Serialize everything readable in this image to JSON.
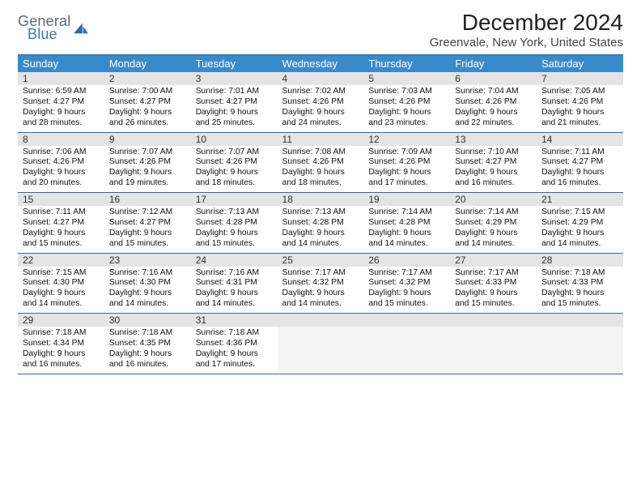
{
  "brand": {
    "word1": "General",
    "word2": "Blue",
    "color1": "#5b6a78",
    "color2": "#3a78b5",
    "shape_color": "#2f6aa8"
  },
  "title": "December 2024",
  "location": "Greenvale, New York, United States",
  "colors": {
    "header_bg": "#3a8ac9",
    "rule": "#2f6aa8",
    "daystrip": "#e4e4e4",
    "empty_detail": "#f4f4f4"
  },
  "weekdays": [
    "Sunday",
    "Monday",
    "Tuesday",
    "Wednesday",
    "Thursday",
    "Friday",
    "Saturday"
  ],
  "weeks": [
    {
      "nums": [
        "1",
        "2",
        "3",
        "4",
        "5",
        "6",
        "7"
      ],
      "days": [
        {
          "sunrise": "6:59 AM",
          "sunset": "4:27 PM",
          "dayh": "9",
          "daym": "28"
        },
        {
          "sunrise": "7:00 AM",
          "sunset": "4:27 PM",
          "dayh": "9",
          "daym": "26"
        },
        {
          "sunrise": "7:01 AM",
          "sunset": "4:27 PM",
          "dayh": "9",
          "daym": "25"
        },
        {
          "sunrise": "7:02 AM",
          "sunset": "4:26 PM",
          "dayh": "9",
          "daym": "24"
        },
        {
          "sunrise": "7:03 AM",
          "sunset": "4:26 PM",
          "dayh": "9",
          "daym": "23"
        },
        {
          "sunrise": "7:04 AM",
          "sunset": "4:26 PM",
          "dayh": "9",
          "daym": "22"
        },
        {
          "sunrise": "7:05 AM",
          "sunset": "4:26 PM",
          "dayh": "9",
          "daym": "21"
        }
      ]
    },
    {
      "nums": [
        "8",
        "9",
        "10",
        "11",
        "12",
        "13",
        "14"
      ],
      "days": [
        {
          "sunrise": "7:06 AM",
          "sunset": "4:26 PM",
          "dayh": "9",
          "daym": "20"
        },
        {
          "sunrise": "7:07 AM",
          "sunset": "4:26 PM",
          "dayh": "9",
          "daym": "19"
        },
        {
          "sunrise": "7:07 AM",
          "sunset": "4:26 PM",
          "dayh": "9",
          "daym": "18"
        },
        {
          "sunrise": "7:08 AM",
          "sunset": "4:26 PM",
          "dayh": "9",
          "daym": "18"
        },
        {
          "sunrise": "7:09 AM",
          "sunset": "4:26 PM",
          "dayh": "9",
          "daym": "17"
        },
        {
          "sunrise": "7:10 AM",
          "sunset": "4:27 PM",
          "dayh": "9",
          "daym": "16"
        },
        {
          "sunrise": "7:11 AM",
          "sunset": "4:27 PM",
          "dayh": "9",
          "daym": "16"
        }
      ]
    },
    {
      "nums": [
        "15",
        "16",
        "17",
        "18",
        "19",
        "20",
        "21"
      ],
      "days": [
        {
          "sunrise": "7:11 AM",
          "sunset": "4:27 PM",
          "dayh": "9",
          "daym": "15"
        },
        {
          "sunrise": "7:12 AM",
          "sunset": "4:27 PM",
          "dayh": "9",
          "daym": "15"
        },
        {
          "sunrise": "7:13 AM",
          "sunset": "4:28 PM",
          "dayh": "9",
          "daym": "15"
        },
        {
          "sunrise": "7:13 AM",
          "sunset": "4:28 PM",
          "dayh": "9",
          "daym": "14"
        },
        {
          "sunrise": "7:14 AM",
          "sunset": "4:28 PM",
          "dayh": "9",
          "daym": "14"
        },
        {
          "sunrise": "7:14 AM",
          "sunset": "4:29 PM",
          "dayh": "9",
          "daym": "14"
        },
        {
          "sunrise": "7:15 AM",
          "sunset": "4:29 PM",
          "dayh": "9",
          "daym": "14"
        }
      ]
    },
    {
      "nums": [
        "22",
        "23",
        "24",
        "25",
        "26",
        "27",
        "28"
      ],
      "days": [
        {
          "sunrise": "7:15 AM",
          "sunset": "4:30 PM",
          "dayh": "9",
          "daym": "14"
        },
        {
          "sunrise": "7:16 AM",
          "sunset": "4:30 PM",
          "dayh": "9",
          "daym": "14"
        },
        {
          "sunrise": "7:16 AM",
          "sunset": "4:31 PM",
          "dayh": "9",
          "daym": "14"
        },
        {
          "sunrise": "7:17 AM",
          "sunset": "4:32 PM",
          "dayh": "9",
          "daym": "14"
        },
        {
          "sunrise": "7:17 AM",
          "sunset": "4:32 PM",
          "dayh": "9",
          "daym": "15"
        },
        {
          "sunrise": "7:17 AM",
          "sunset": "4:33 PM",
          "dayh": "9",
          "daym": "15"
        },
        {
          "sunrise": "7:18 AM",
          "sunset": "4:33 PM",
          "dayh": "9",
          "daym": "15"
        }
      ]
    },
    {
      "nums": [
        "29",
        "30",
        "31",
        "",
        "",
        "",
        ""
      ],
      "days": [
        {
          "sunrise": "7:18 AM",
          "sunset": "4:34 PM",
          "dayh": "9",
          "daym": "16"
        },
        {
          "sunrise": "7:18 AM",
          "sunset": "4:35 PM",
          "dayh": "9",
          "daym": "16"
        },
        {
          "sunrise": "7:18 AM",
          "sunset": "4:36 PM",
          "dayh": "9",
          "daym": "17"
        },
        null,
        null,
        null,
        null
      ]
    }
  ],
  "labels": {
    "sunrise": "Sunrise: ",
    "sunset": "Sunset: ",
    "daylight_a": "Daylight: ",
    "daylight_b": " hours and ",
    "daylight_c": " minutes."
  }
}
